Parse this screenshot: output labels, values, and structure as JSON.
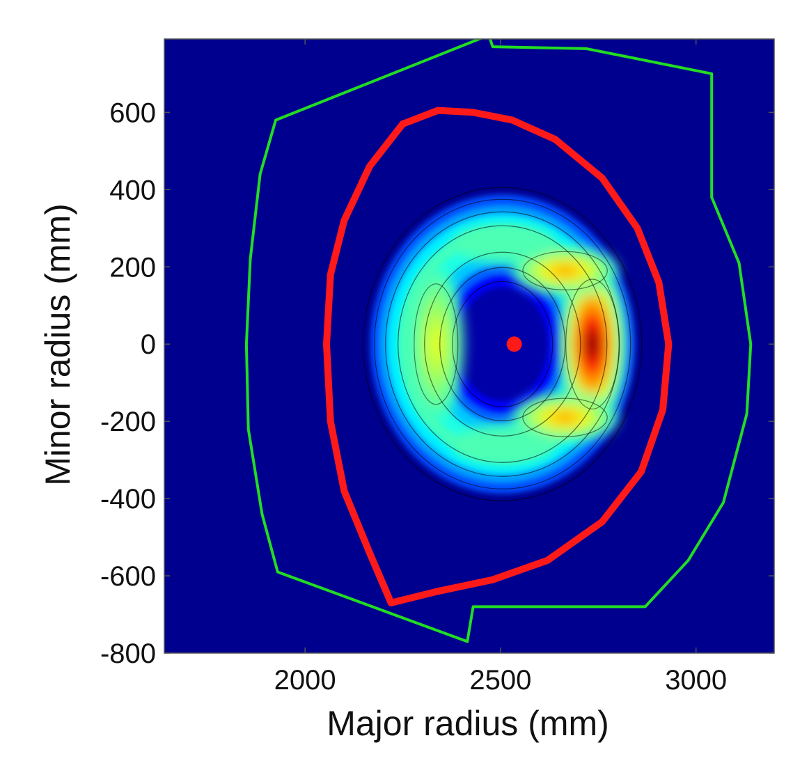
{
  "chart_data": {
    "type": "heatmap",
    "title": "",
    "xlabel": "Major radius (mm)",
    "ylabel": "Minor radius (mm)",
    "xlim": [
      1640,
      3200
    ],
    "ylim": [
      -800,
      790
    ],
    "x_ticks": [
      {
        "value": 2000,
        "label": "2000"
      },
      {
        "value": 2500,
        "label": "2500"
      },
      {
        "value": 3000,
        "label": "3000"
      }
    ],
    "y_ticks": [
      {
        "value": 600,
        "label": "600"
      },
      {
        "value": 400,
        "label": "400"
      },
      {
        "value": 200,
        "label": "200"
      },
      {
        "value": 0,
        "label": "0"
      },
      {
        "value": -200,
        "label": "-200"
      },
      {
        "value": -400,
        "label": "-400"
      },
      {
        "value": -600,
        "label": "-600"
      },
      {
        "value": -800,
        "label": "-800"
      }
    ],
    "grid": false,
    "colormap": "jet",
    "background_color": "#00008f",
    "magnetic_axis": {
      "x": 2535,
      "y": 0,
      "color": "#ff1a1a"
    },
    "separatrix": {
      "color": "#ff1a1a",
      "points": [
        [
          2220,
          -670
        ],
        [
          2165,
          -540
        ],
        [
          2100,
          -380
        ],
        [
          2065,
          -200
        ],
        [
          2055,
          0
        ],
        [
          2065,
          180
        ],
        [
          2100,
          320
        ],
        [
          2165,
          460
        ],
        [
          2250,
          570
        ],
        [
          2340,
          605
        ],
        [
          2430,
          600
        ],
        [
          2530,
          580
        ],
        [
          2640,
          530
        ],
        [
          2760,
          430
        ],
        [
          2850,
          300
        ],
        [
          2905,
          160
        ],
        [
          2930,
          0
        ],
        [
          2915,
          -170
        ],
        [
          2860,
          -330
        ],
        [
          2760,
          -460
        ],
        [
          2620,
          -560
        ],
        [
          2480,
          -610
        ],
        [
          2340,
          -640
        ],
        [
          2220,
          -670
        ]
      ]
    },
    "vessel_wall": {
      "color": "#22dd22",
      "points": [
        [
          2470,
          800
        ],
        [
          2480,
          770
        ],
        [
          2720,
          765
        ],
        [
          3040,
          700
        ],
        [
          3040,
          380
        ],
        [
          3110,
          210
        ],
        [
          3140,
          0
        ],
        [
          3130,
          -180
        ],
        [
          3070,
          -410
        ],
        [
          2980,
          -560
        ],
        [
          2870,
          -680
        ],
        [
          2430,
          -680
        ],
        [
          2415,
          -770
        ],
        [
          1930,
          -590
        ],
        [
          1890,
          -440
        ],
        [
          1855,
          -220
        ],
        [
          1850,
          0
        ],
        [
          1860,
          220
        ],
        [
          1885,
          440
        ],
        [
          1925,
          580
        ],
        [
          2470,
          800
        ]
      ]
    },
    "emission_lobes": [
      {
        "x": 2735,
        "y": 0,
        "rx": 85,
        "ry": 210,
        "peak": 1.0
      },
      {
        "x": 2665,
        "y": 190,
        "rx": 135,
        "ry": 62,
        "peak": 0.72
      },
      {
        "x": 2665,
        "y": -190,
        "rx": 135,
        "ry": 62,
        "peak": 0.72
      },
      {
        "x": 2335,
        "y": 0,
        "rx": 70,
        "ry": 195,
        "peak": 0.6
      },
      {
        "x": 2510,
        "y": 260,
        "rx": 130,
        "ry": 50,
        "peak": 0.45
      },
      {
        "x": 2510,
        "y": -260,
        "rx": 130,
        "ry": 50,
        "peak": 0.45
      }
    ]
  }
}
